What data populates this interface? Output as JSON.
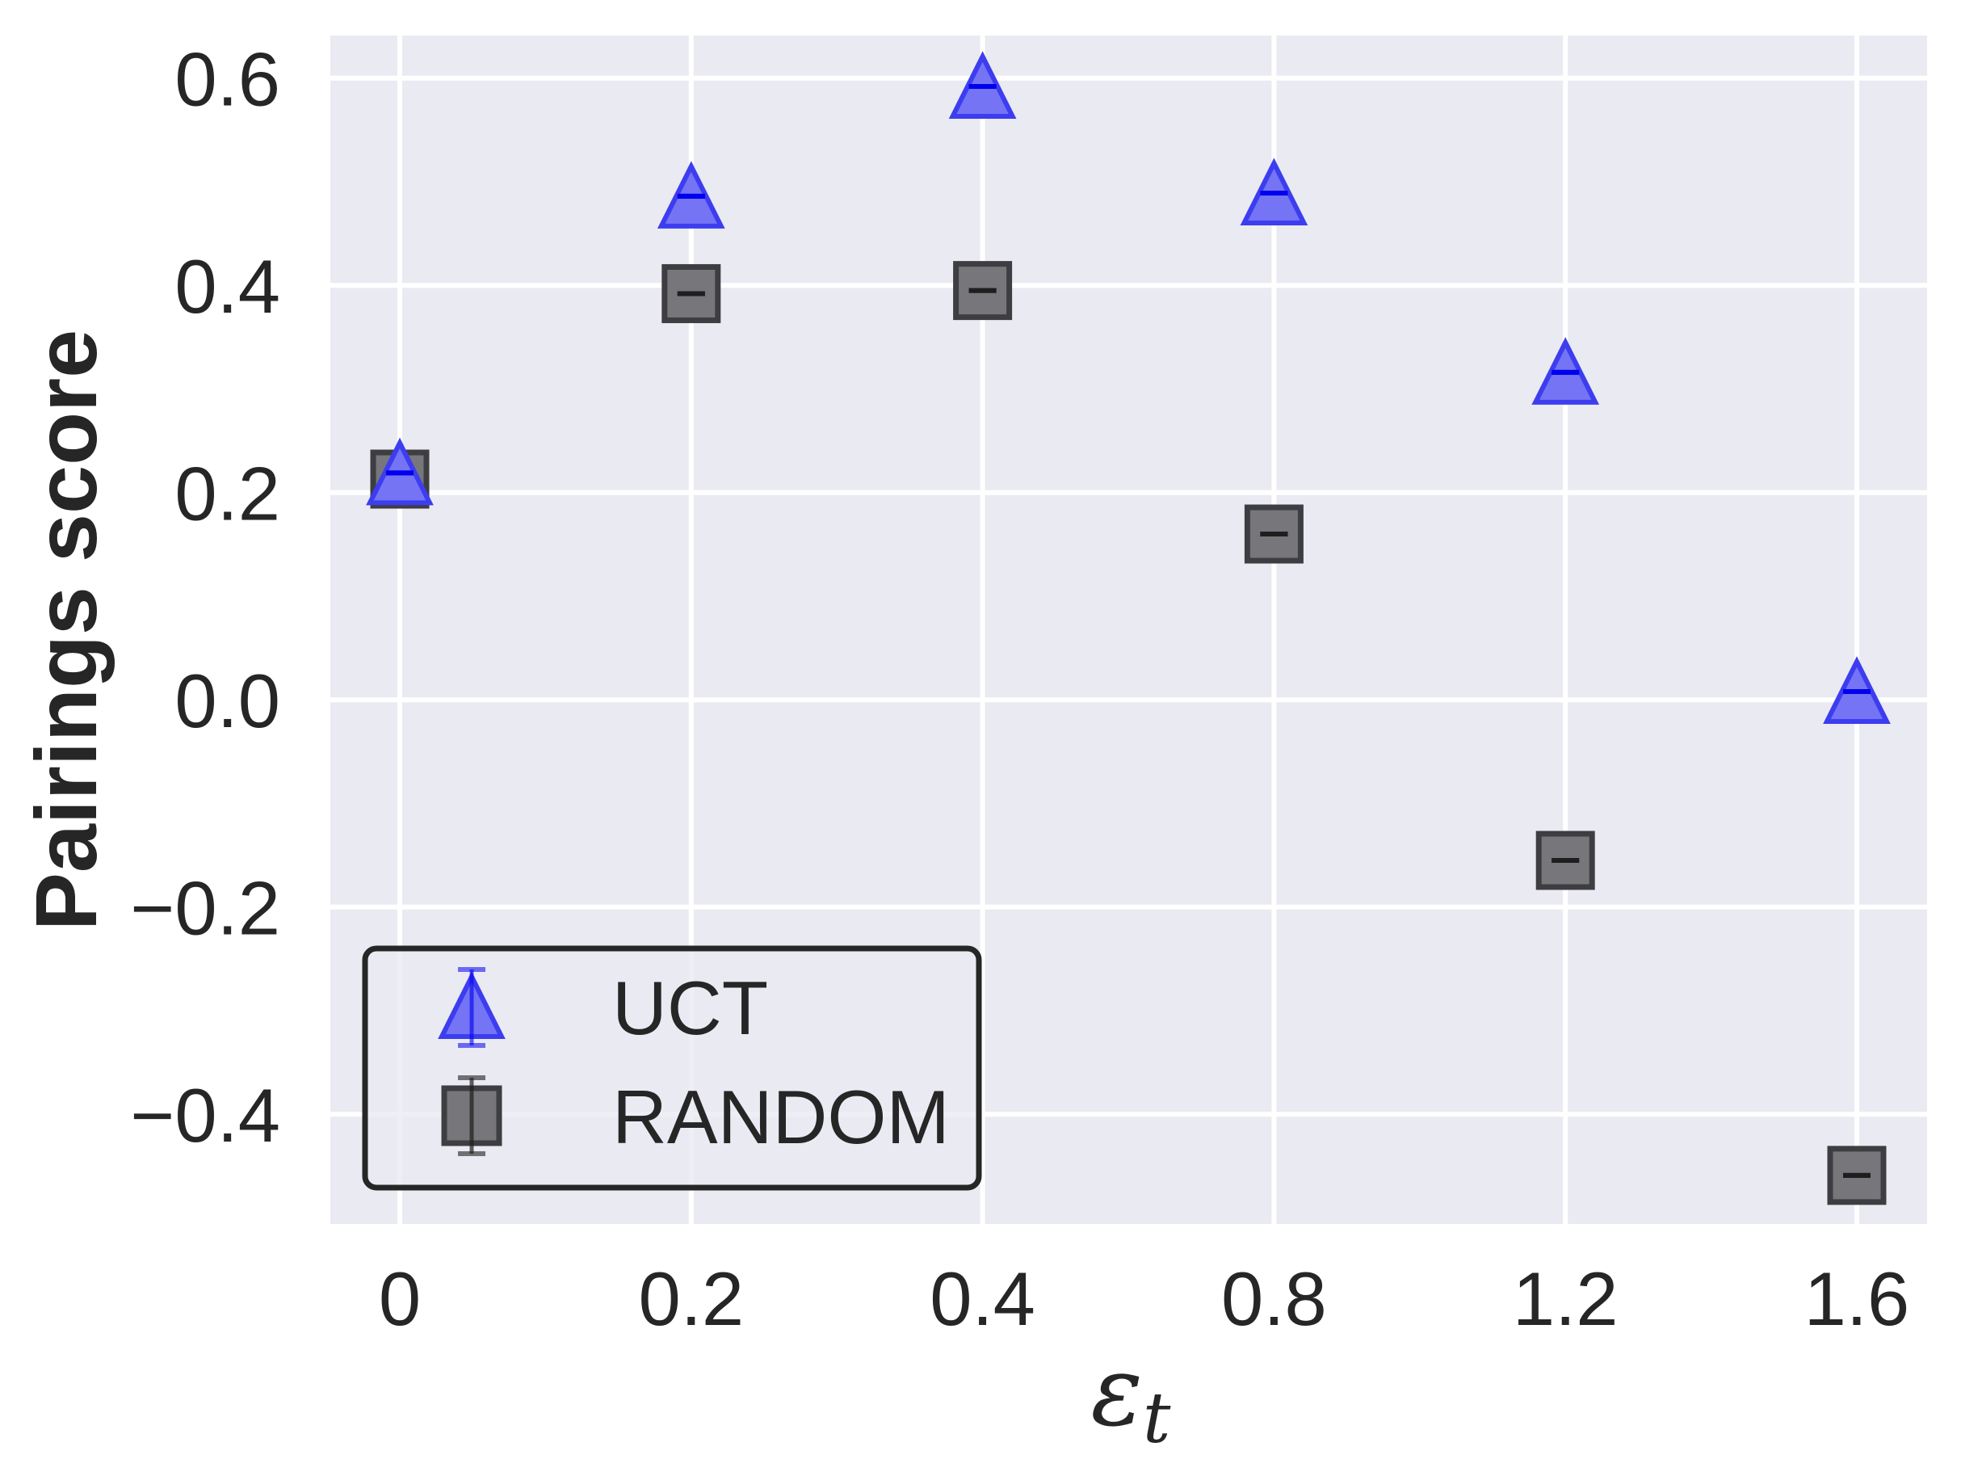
{
  "chart_data": {
    "type": "scatter",
    "title": "",
    "xlabel": "ε_t",
    "xlabel_main": "ε",
    "xlabel_sub": "t",
    "ylabel": "Pairings score",
    "categories": [
      "0",
      "0.2",
      "0.4",
      "0.8",
      "1.2",
      "1.6"
    ],
    "x": [
      0,
      0.2,
      0.4,
      0.8,
      1.2,
      1.6
    ],
    "x_scale": "categorical (equally spaced)",
    "ylim": [
      -0.506,
      0.641
    ],
    "yticks": [
      -0.4,
      -0.2,
      0.0,
      0.2,
      0.4,
      0.6
    ],
    "ytick_labels": [
      "−0.4",
      "−0.2",
      "0.0",
      "0.2",
      "0.4",
      "0.6"
    ],
    "grid": true,
    "legend_position": "lower left",
    "series": [
      {
        "name": "UCT",
        "marker": "triangle-up",
        "color": "#0000ff",
        "fill": "#7474f5",
        "edge": "#3d3df0",
        "errorbar_color": "#0000ee",
        "values": [
          0.219,
          0.486,
          0.592,
          0.489,
          0.316,
          0.008
        ],
        "errors": [
          0.0,
          0.0,
          0.0,
          0.0,
          0.0,
          0.0
        ]
      },
      {
        "name": "RANDOM",
        "marker": "square",
        "color": "#000000",
        "fill": "#76767b",
        "edge": "#3e3e42",
        "errorbar_color": "#1e1e1e",
        "values": [
          0.213,
          0.392,
          0.395,
          0.16,
          -0.155,
          -0.459
        ],
        "errors": [
          0.0,
          0.0,
          0.0,
          0.0,
          0.0,
          0.0
        ]
      }
    ]
  },
  "style": {
    "plot_background": "#eaeaf2",
    "grid_color": "#ffffff",
    "text_color": "#262626",
    "legend_border": "#262626"
  }
}
